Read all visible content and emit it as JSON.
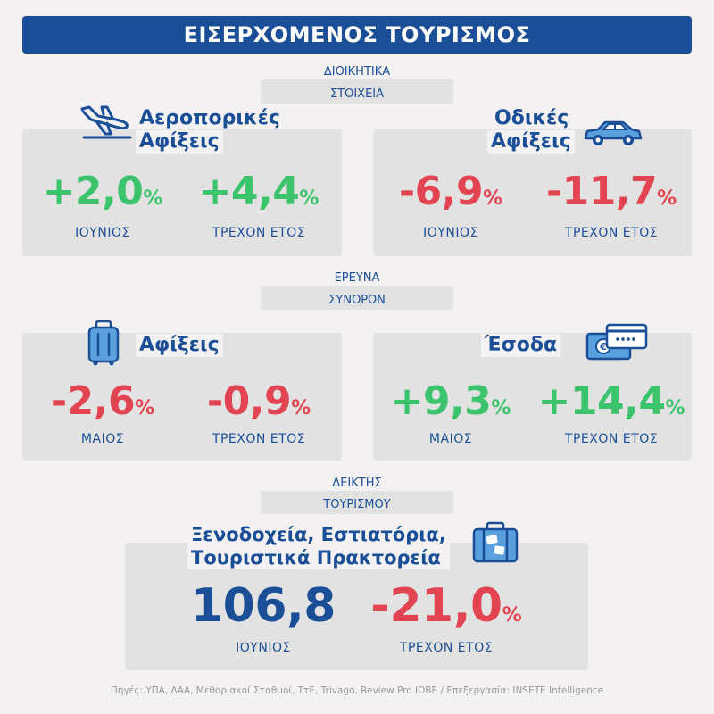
{
  "title": "ΕΙΣΕΡΧΟΜΕΝΟΣ ΤΟΥΡΙΣΜΟΣ",
  "colors": {
    "accent": "#1a4f98",
    "positive": "#3cc46c",
    "negative": "#e24551",
    "panel": "#e2e2e2"
  },
  "sections": {
    "admin": {
      "line1": "ΔΙΟΙΚΗΤΙΚΑ",
      "line2": "ΣΤΟΙΧΕΙΑ"
    },
    "border": {
      "line1": "ΕΡΕΥΝΑ",
      "line2": "ΣΥΝΟΡΩΝ"
    },
    "index": {
      "line1": "ΔΕΙΚΤΗΣ",
      "line2": "ΤΟΥΡΙΣΜΟΥ"
    }
  },
  "cards": {
    "air": {
      "title_line1": "Αεροπορικές",
      "title_line2": "Αφίξεις",
      "icon": "airplane-icon",
      "left": {
        "value": "+2,0",
        "unit": "%",
        "label": "ΙΟΥΝΙΟΣ"
      },
      "right": {
        "value": "+4,4",
        "unit": "%",
        "label": "ΤΡΕΧΟΝ ΕΤΟΣ"
      }
    },
    "road": {
      "title_line1": "Οδικές",
      "title_line2": "Αφίξεις",
      "icon": "car-icon",
      "left": {
        "value": "-6,9",
        "unit": "%",
        "label": "ΙΟΥΝΙΟΣ"
      },
      "right": {
        "value": "-11,7",
        "unit": "%",
        "label": "ΤΡΕΧΟΝ ΕΤΟΣ"
      }
    },
    "arrivals": {
      "title": "Αφίξεις",
      "icon": "luggage-icon",
      "left": {
        "value": "-2,6",
        "unit": "%",
        "label": "ΜΑΙΟΣ"
      },
      "right": {
        "value": "-0,9",
        "unit": "%",
        "label": "ΤΡΕΧΟΝ ΕΤΟΣ"
      }
    },
    "revenue": {
      "title": "Έσοδα",
      "icon": "money-card-icon",
      "left": {
        "value": "+9,3",
        "unit": "%",
        "label": "ΜΑΙΟΣ"
      },
      "right": {
        "value": "+14,4",
        "unit": "%",
        "label": "ΤΡΕΧΟΝ ΕΤΟΣ"
      }
    },
    "hotels": {
      "title_line1": "Ξενοδοχεία, Εστιατόρια,",
      "title_line2": "Τουριστικά Πρακτορεία",
      "icon": "suitcase-icon",
      "left": {
        "value": "106,8",
        "label": "ΙΟΥΝΙΟΣ"
      },
      "right": {
        "value": "-21,0",
        "unit": "%",
        "label": "ΤΡΕΧΟΝ ΕΤΟΣ"
      }
    }
  },
  "sources": "Πηγές: ΥΠΑ, ΔΑΑ, Μεθοριακοί Σταθμοί, ΤτΕ, Trivago, Review Pro ΙΟΒΕ  /  Επεξεργασία: INSETE Intelligence"
}
